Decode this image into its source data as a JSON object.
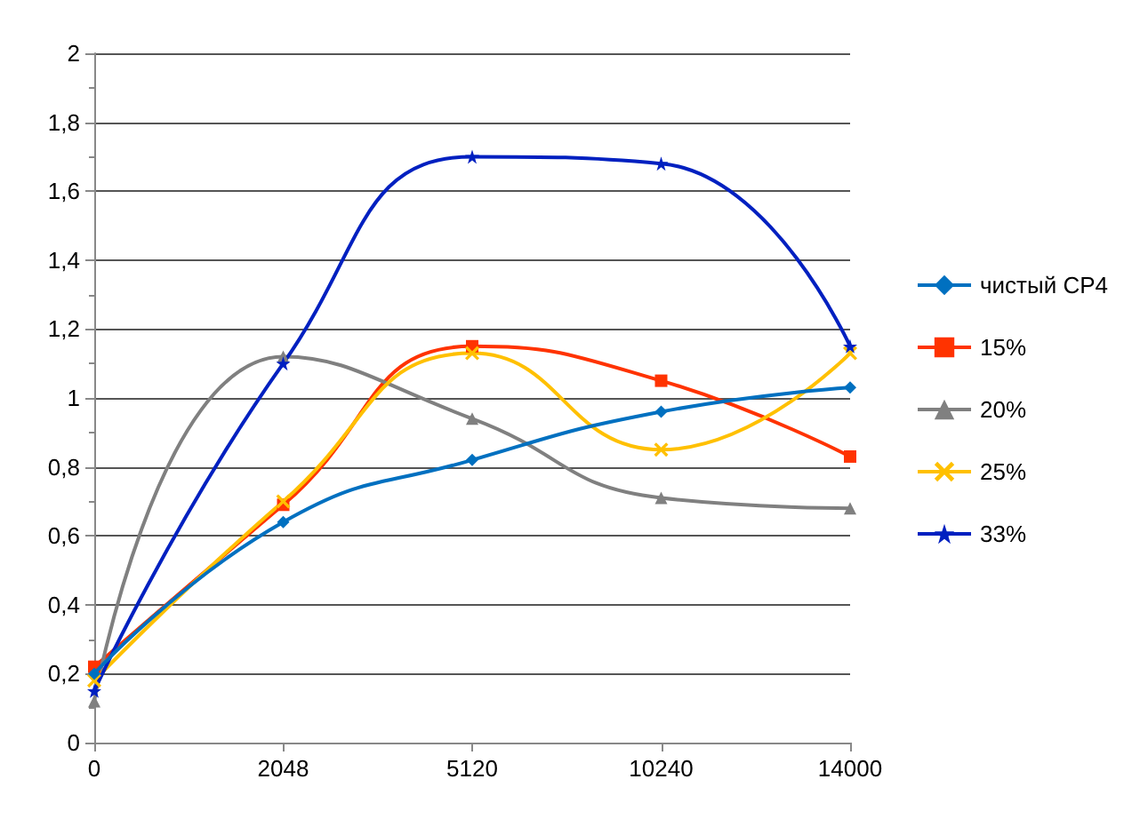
{
  "chart_data": {
    "type": "line",
    "categories": [
      "0",
      "2048",
      "5120",
      "10240",
      "14000"
    ],
    "series": [
      {
        "name": "чистый CP4",
        "color": "#0070c0",
        "marker": "diamond",
        "values": [
          0.2,
          0.64,
          0.82,
          0.96,
          1.03
        ]
      },
      {
        "name": "15%",
        "color": "#ff3300",
        "marker": "square",
        "values": [
          0.22,
          0.69,
          1.15,
          1.05,
          0.83
        ]
      },
      {
        "name": "20%",
        "color": "#808080",
        "marker": "triangle",
        "values": [
          0.12,
          1.12,
          0.94,
          0.71,
          0.68
        ]
      },
      {
        "name": "25%",
        "color": "#ffc000",
        "marker": "cross",
        "values": [
          0.18,
          0.7,
          1.13,
          0.85,
          1.13
        ]
      },
      {
        "name": "33%",
        "color": "#0020c0",
        "marker": "star",
        "values": [
          0.15,
          1.1,
          1.7,
          1.68,
          1.15
        ]
      }
    ],
    "ylim": [
      0,
      2
    ],
    "yticks": [
      0,
      {
        "value": 0.2,
        "label": "0,2"
      },
      {
        "value": 0.4,
        "label": "0,4"
      },
      {
        "value": 0.6,
        "label": "0,6"
      },
      {
        "value": 0.8,
        "label": "0,8"
      },
      1,
      {
        "value": 1.2,
        "label": "1,2"
      },
      {
        "value": 1.4,
        "label": "1,4"
      },
      {
        "value": 1.6,
        "label": "1,6"
      },
      {
        "value": 1.8,
        "label": "1,8"
      },
      2
    ],
    "grid": "y",
    "legend": "right"
  }
}
